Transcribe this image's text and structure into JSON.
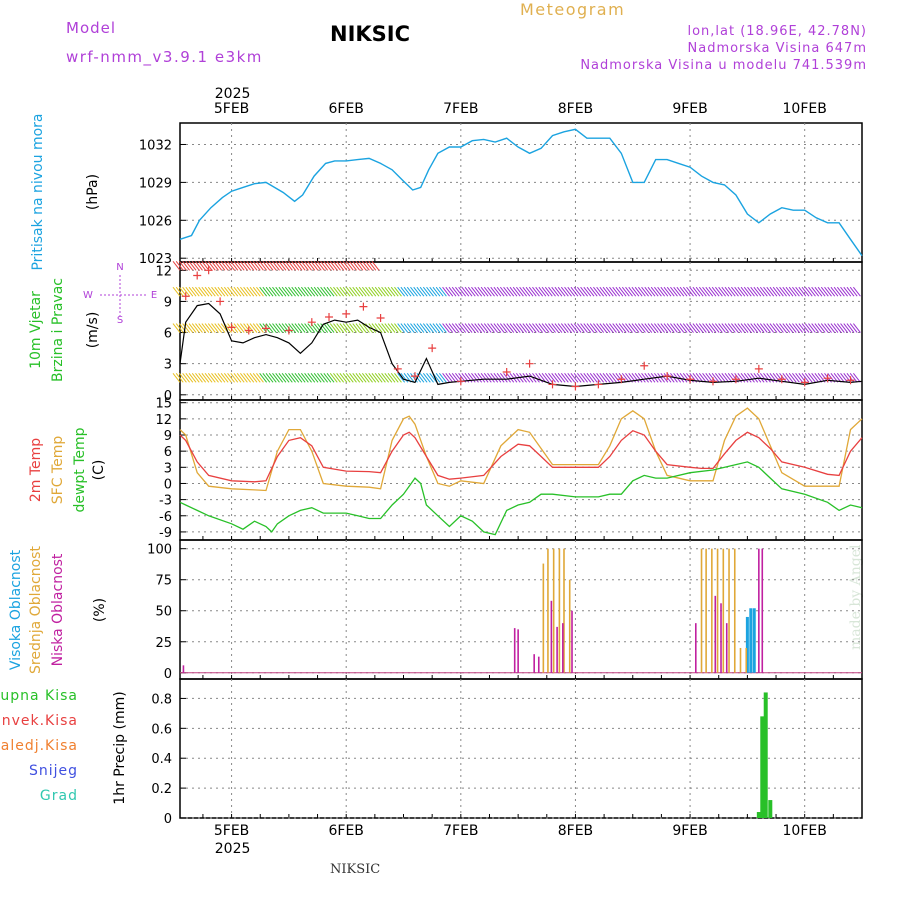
{
  "header": {
    "model_label": "Model",
    "model_run": "wrf-nmm_v3.9.1 e3km",
    "title": "NIKSIC",
    "meteogram": "Meteogram",
    "lonlat": "lon,lat (18.96E, 42.78N)",
    "elevation": "Nadmorska Visina 647m",
    "elevation_model": "Nadmorska Visina u modelu 741.539m",
    "year_top": "2025",
    "year_bottom": "2025"
  },
  "footer": {
    "station": "NIKSIC",
    "watermark": "made by Angel"
  },
  "colors": {
    "pressure": "#1ba3e0",
    "t2m": "#e84040",
    "sfc": "#e0a838",
    "dew": "#28c028",
    "cloud_high": "#1ba3e0",
    "cloud_mid": "#e0a838",
    "cloud_low": "#c020a0",
    "precip": "#28c028",
    "wind_speed": "#000000",
    "gust": "#e84040"
  },
  "legends": {
    "pressure": [
      "Pritisak na nivou mora",
      "(hPa)"
    ],
    "wind": [
      "10m Vjetar",
      "Brzina i Pravac",
      "(m/s)"
    ],
    "wind_compass": [
      "N",
      "S",
      "W",
      "E"
    ],
    "temp": [
      "2m Temp",
      "SFC Temp",
      "dewpt Temp",
      "(C)"
    ],
    "cloud": [
      "Visoka Oblacnost",
      "Srednja Oblacnost",
      "Niska Oblacnost",
      "(%)"
    ],
    "precip_items": [
      "Ukupna Kisa",
      "Konvek.Kisa",
      "Zaledj.Kisa",
      "Snijeg",
      "Grad"
    ],
    "precip_axis": "1hr Precip (mm)"
  },
  "chart_data": [
    {
      "type": "line",
      "name": "pressure",
      "ylabel": "(hPa)",
      "ylim": [
        1022.7,
        1033.7
      ],
      "yticks": [
        1023,
        1026,
        1029,
        1032
      ],
      "x_days": [
        "5FEB",
        "6FEB",
        "7FEB",
        "8FEB",
        "9FEB",
        "10FEB"
      ],
      "x": [
        4.55,
        4.65,
        4.72,
        4.82,
        4.92,
        5.0,
        5.1,
        5.2,
        5.3,
        5.45,
        5.55,
        5.62,
        5.72,
        5.82,
        5.9,
        6.0,
        6.1,
        6.2,
        6.3,
        6.4,
        6.5,
        6.58,
        6.65,
        6.72,
        6.8,
        6.9,
        7.0,
        7.1,
        7.2,
        7.3,
        7.4,
        7.5,
        7.6,
        7.7,
        7.8,
        7.9,
        8.0,
        8.1,
        8.2,
        8.3,
        8.4,
        8.5,
        8.6,
        8.7,
        8.8,
        8.9,
        9.0,
        9.1,
        9.2,
        9.3,
        9.4,
        9.5,
        9.6,
        9.7,
        9.8,
        9.9,
        10.0,
        10.1,
        10.2,
        10.3,
        10.4,
        10.5
      ],
      "values": [
        1024.5,
        1024.8,
        1026.0,
        1027.0,
        1027.8,
        1028.3,
        1028.6,
        1028.9,
        1029.0,
        1028.2,
        1027.5,
        1028.0,
        1029.5,
        1030.5,
        1030.7,
        1030.7,
        1030.8,
        1030.9,
        1030.5,
        1030.0,
        1029.1,
        1028.4,
        1028.6,
        1030.0,
        1031.3,
        1031.8,
        1031.8,
        1032.3,
        1032.4,
        1032.2,
        1032.5,
        1031.8,
        1031.3,
        1031.7,
        1032.7,
        1033.0,
        1033.2,
        1032.5,
        1032.5,
        1032.5,
        1031.3,
        1029.0,
        1029.0,
        1030.8,
        1030.8,
        1030.5,
        1030.2,
        1029.5,
        1029.0,
        1028.8,
        1028.0,
        1026.5,
        1025.8,
        1026.5,
        1027.0,
        1026.8,
        1026.8,
        1026.2,
        1025.8,
        1025.8,
        1024.5,
        1023.2
      ]
    },
    {
      "type": "line",
      "name": "wind",
      "ylabel": "(m/s)",
      "ylim": [
        -0.5,
        12.8
      ],
      "yticks": [
        0,
        3,
        6,
        9,
        12
      ],
      "series": [
        {
          "name": "speed",
          "x": [
            4.55,
            4.6,
            4.7,
            4.8,
            4.9,
            5.0,
            5.1,
            5.2,
            5.3,
            5.4,
            5.5,
            5.6,
            5.7,
            5.8,
            5.9,
            6.0,
            6.1,
            6.2,
            6.3,
            6.4,
            6.5,
            6.6,
            6.7,
            6.8,
            6.9,
            7.0,
            7.2,
            7.4,
            7.6,
            7.8,
            8.0,
            8.2,
            8.4,
            8.6,
            8.8,
            9.0,
            9.2,
            9.4,
            9.6,
            9.8,
            10.0,
            10.2,
            10.4,
            10.5
          ],
          "values": [
            3.0,
            7.0,
            8.6,
            8.8,
            7.8,
            5.2,
            5.0,
            5.5,
            5.8,
            5.5,
            5.0,
            4.0,
            5.0,
            6.8,
            7.2,
            7.0,
            7.2,
            6.5,
            6.0,
            3.0,
            1.5,
            1.2,
            3.5,
            1.0,
            1.2,
            1.3,
            1.5,
            1.5,
            1.8,
            1.0,
            0.8,
            1.0,
            1.2,
            1.5,
            1.8,
            1.4,
            1.2,
            1.3,
            1.6,
            1.3,
            1.0,
            1.4,
            1.2,
            1.3
          ]
        },
        {
          "name": "gust",
          "x": [
            4.6,
            4.7,
            4.8,
            4.9,
            5.0,
            5.15,
            5.3,
            5.5,
            5.7,
            5.85,
            6.0,
            6.15,
            6.3,
            6.45,
            6.6,
            6.75,
            7.0,
            7.4,
            7.6,
            7.8,
            8.0,
            8.2,
            8.4,
            8.6,
            8.8,
            9.0,
            9.2,
            9.4,
            9.6,
            9.8,
            10.0,
            10.2,
            10.4
          ],
          "values": [
            9.5,
            11.5,
            12.0,
            9.0,
            6.5,
            6.2,
            6.4,
            6.2,
            7.0,
            7.5,
            7.8,
            8.5,
            7.4,
            2.5,
            1.8,
            4.5,
            1.3,
            2.2,
            3.0,
            1.0,
            0.8,
            1.0,
            1.5,
            2.8,
            1.8,
            1.5,
            1.3,
            1.5,
            2.5,
            1.5,
            1.2,
            1.6,
            1.4
          ]
        }
      ]
    },
    {
      "type": "line",
      "name": "temperature",
      "ylabel": "(C)",
      "ylim": [
        -10.5,
        15.5
      ],
      "yticks": [
        -9,
        -6,
        -3,
        0,
        3,
        6,
        9,
        12,
        15
      ],
      "series": [
        {
          "name": "2m Temp",
          "x": [
            4.55,
            4.6,
            4.7,
            4.8,
            5.0,
            5.2,
            5.3,
            5.4,
            5.5,
            5.6,
            5.7,
            5.8,
            6.0,
            6.2,
            6.3,
            6.4,
            6.5,
            6.55,
            6.6,
            6.7,
            6.8,
            6.9,
            7.0,
            7.2,
            7.35,
            7.5,
            7.6,
            7.7,
            7.8,
            8.0,
            8.2,
            8.3,
            8.4,
            8.5,
            8.6,
            8.7,
            8.8,
            9.0,
            9.1,
            9.2,
            9.3,
            9.4,
            9.5,
            9.6,
            9.7,
            9.8,
            10.0,
            10.2,
            10.3,
            10.4,
            10.5
          ],
          "values": [
            9.0,
            8.0,
            4.0,
            1.5,
            0.5,
            0.3,
            0.5,
            5.0,
            8.0,
            8.5,
            7.0,
            3.0,
            2.3,
            2.2,
            2.0,
            6.0,
            9.0,
            9.5,
            8.5,
            5.0,
            1.5,
            0.8,
            1.0,
            1.5,
            5.0,
            7.3,
            7.0,
            5.0,
            3.0,
            3.0,
            3.0,
            5.0,
            8.0,
            9.8,
            9.0,
            6.0,
            3.5,
            3.0,
            2.8,
            2.8,
            5.5,
            8.0,
            9.5,
            8.5,
            6.5,
            4.0,
            3.0,
            1.7,
            1.5,
            6.0,
            8.5
          ]
        },
        {
          "name": "SFC Temp",
          "x": [
            4.55,
            4.6,
            4.7,
            4.8,
            5.0,
            5.2,
            5.3,
            5.4,
            5.5,
            5.6,
            5.7,
            5.8,
            6.0,
            6.2,
            6.3,
            6.4,
            6.5,
            6.55,
            6.6,
            6.7,
            6.8,
            6.9,
            7.0,
            7.2,
            7.35,
            7.5,
            7.6,
            7.7,
            7.8,
            8.0,
            8.2,
            8.3,
            8.4,
            8.5,
            8.6,
            8.7,
            8.8,
            9.0,
            9.1,
            9.2,
            9.3,
            9.4,
            9.5,
            9.6,
            9.7,
            9.8,
            10.0,
            10.2,
            10.3,
            10.4,
            10.5
          ],
          "values": [
            10.0,
            9.0,
            2.0,
            -0.5,
            -1.0,
            -1.2,
            -1.3,
            6.0,
            10.0,
            10.0,
            6.0,
            0.0,
            -0.5,
            -0.7,
            -1.0,
            8.0,
            12.0,
            12.5,
            11.0,
            5.0,
            0.0,
            -0.5,
            0.5,
            0.0,
            7.0,
            10.0,
            9.5,
            6.5,
            3.5,
            3.5,
            3.5,
            7.0,
            12.0,
            13.5,
            12.0,
            6.0,
            1.5,
            0.5,
            0.5,
            0.5,
            8.0,
            12.5,
            14.0,
            12.0,
            7.0,
            2.0,
            -0.5,
            -0.5,
            -0.5,
            10.0,
            12.0
          ]
        },
        {
          "name": "dewpt Temp",
          "x": [
            4.55,
            4.6,
            4.7,
            4.8,
            5.0,
            5.1,
            5.2,
            5.3,
            5.35,
            5.4,
            5.5,
            5.6,
            5.7,
            5.8,
            6.0,
            6.1,
            6.2,
            6.3,
            6.4,
            6.5,
            6.6,
            6.65,
            6.7,
            6.8,
            6.9,
            7.0,
            7.1,
            7.2,
            7.3,
            7.4,
            7.5,
            7.6,
            7.7,
            7.8,
            8.0,
            8.2,
            8.3,
            8.4,
            8.5,
            8.6,
            8.7,
            8.8,
            9.0,
            9.2,
            9.4,
            9.5,
            9.6,
            9.7,
            9.8,
            10.0,
            10.2,
            10.3,
            10.4,
            10.5
          ],
          "values": [
            -3.5,
            -4.0,
            -5.0,
            -6.0,
            -7.5,
            -8.5,
            -7.0,
            -8.0,
            -9.0,
            -7.5,
            -6.0,
            -5.0,
            -4.5,
            -5.5,
            -5.5,
            -6.0,
            -6.5,
            -6.5,
            -4.0,
            -2.0,
            1.0,
            0.0,
            -4.0,
            -6.0,
            -8.0,
            -6.0,
            -7.0,
            -9.0,
            -9.5,
            -5.0,
            -4.0,
            -3.5,
            -2.0,
            -2.0,
            -2.5,
            -2.5,
            -2.0,
            -2.0,
            0.5,
            1.5,
            1.0,
            1.0,
            2.0,
            2.5,
            3.5,
            4.0,
            3.0,
            1.0,
            -1.0,
            -2.0,
            -3.5,
            -5.0,
            -4.0,
            -4.5
          ]
        }
      ]
    },
    {
      "type": "bar",
      "name": "cloud",
      "ylabel": "(%)",
      "ylim": [
        -5,
        107
      ],
      "yticks": [
        0,
        25,
        50,
        75,
        100
      ],
      "series": [
        {
          "name": "Visoka Oblacnost",
          "x": [
            9.5,
            9.53,
            9.56
          ],
          "values": [
            45,
            52,
            52
          ]
        },
        {
          "name": "Srednja Oblacnost",
          "x": [
            7.72,
            7.76,
            7.81,
            7.86,
            7.9,
            7.95,
            9.1,
            9.14,
            9.19,
            9.24,
            9.29,
            9.34,
            9.39,
            9.44,
            9.49
          ],
          "values": [
            88,
            100,
            100,
            100,
            100,
            75,
            100,
            100,
            100,
            100,
            100,
            100,
            100,
            20,
            20
          ]
        },
        {
          "name": "Niska Oblacnost",
          "x": [
            4.58,
            7.47,
            7.5,
            7.64,
            7.68,
            7.79,
            7.84,
            7.89,
            7.97,
            9.05,
            9.22,
            9.27,
            9.32,
            9.6,
            9.63
          ],
          "values": [
            6,
            36,
            35,
            15,
            13,
            58,
            37,
            40,
            50,
            40,
            62,
            56,
            40,
            100,
            100
          ]
        }
      ]
    },
    {
      "type": "bar",
      "name": "precipitation",
      "ylabel": "1hr Precip (mm)",
      "ylim": [
        0,
        0.93
      ],
      "yticks": [
        0,
        0.2,
        0.4,
        0.6,
        0.8
      ],
      "series": [
        {
          "name": "Ukupna Kisa",
          "x": [
            9.6,
            9.63,
            9.66,
            9.7
          ],
          "values": [
            0.04,
            0.68,
            0.84,
            0.12
          ]
        }
      ]
    }
  ]
}
